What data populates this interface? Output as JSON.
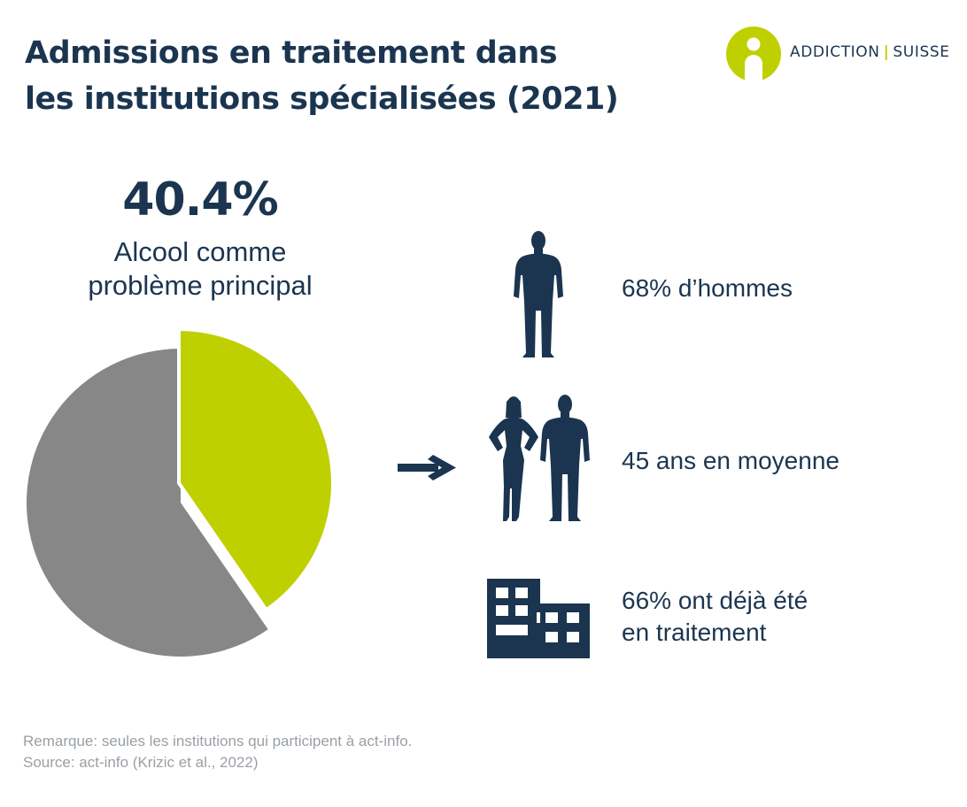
{
  "title": {
    "line1": "Admissions en traitement dans",
    "line2": "les institutions spécialisées (2021)"
  },
  "logo": {
    "part1": "ADDICTION",
    "separator": "|",
    "part2": "SUISSE",
    "accent_color": "#bfd000"
  },
  "highlight": {
    "value": "40.4%",
    "label_line1": "Alcool comme",
    "label_line2": "problème principal"
  },
  "chart_data": {
    "type": "pie",
    "slices": [
      {
        "label": "Alcool comme problème principal",
        "value": 40.4,
        "color": "#bfd000"
      },
      {
        "label": "",
        "value": 59.6,
        "color": "#878787"
      }
    ]
  },
  "facts": [
    {
      "icon": "man-silhouette-icon",
      "line1": "68% d’hommes"
    },
    {
      "icon": "couple-silhouette-icon",
      "line1": "45 ans en moyenne"
    },
    {
      "icon": "building-icon",
      "line1": "66% ont déjà été",
      "line2": "en traitement"
    }
  ],
  "colors": {
    "navy": "#1b3550",
    "lime": "#bfd000",
    "grey": "#878787",
    "note": "#9aa0a6"
  },
  "footnote": {
    "remark": "Remarque: seules les institutions qui participent à act-info.",
    "source": "Source: act-info (Krizic et al., 2022)"
  }
}
